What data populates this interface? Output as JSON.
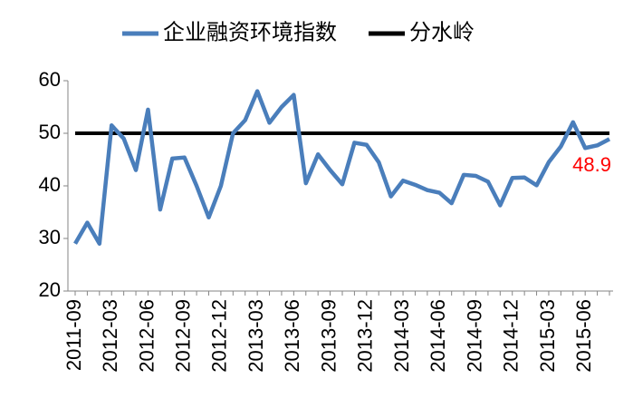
{
  "chart_data": {
    "type": "line",
    "categories": [
      "2011-09",
      null,
      null,
      "2012-03",
      null,
      null,
      "2012-06",
      null,
      null,
      "2012-09",
      null,
      null,
      "2012-12",
      null,
      null,
      "2013-03",
      null,
      null,
      "2013-06",
      null,
      null,
      "2013-09",
      null,
      null,
      "2013-12",
      null,
      null,
      "2014-03",
      null,
      null,
      "2014-06",
      null,
      null,
      "2014-09",
      null,
      null,
      "2014-12",
      null,
      null,
      "2015-03",
      null,
      null,
      "2015-06",
      null,
      null
    ],
    "series": [
      {
        "name": "企业融资环境指数",
        "color": "#4a7ebb",
        "label_last": true,
        "label_color": "#ff0000",
        "values": [
          29,
          33,
          29,
          51.5,
          49,
          43,
          54.5,
          35.5,
          45.2,
          45.4,
          40,
          34,
          40,
          50,
          52.5,
          58,
          52,
          55,
          57.3,
          40.5,
          46,
          43,
          40.3,
          48.2,
          47.8,
          44.5,
          38,
          41,
          40.2,
          39.2,
          38.7,
          36.7,
          42.1,
          41.9,
          40.8,
          36.3,
          41.5,
          41.6,
          40.1,
          44.5,
          47.5,
          52.1,
          47.2,
          47.7,
          48.9
        ]
      },
      {
        "name": "分水岭",
        "color": "#000000",
        "values": [
          50,
          50,
          50,
          50,
          50,
          50,
          50,
          50,
          50,
          50,
          50,
          50,
          50,
          50,
          50,
          50,
          50,
          50,
          50,
          50,
          50,
          50,
          50,
          50,
          50,
          50,
          50,
          50,
          50,
          50,
          50,
          50,
          50,
          50,
          50,
          50,
          50,
          50,
          50,
          50,
          50,
          50,
          50,
          50,
          50
        ]
      }
    ],
    "ylim": [
      20,
      60
    ],
    "yticks": [
      20,
      30,
      40,
      50,
      60
    ],
    "grid": false,
    "legend": "top"
  }
}
